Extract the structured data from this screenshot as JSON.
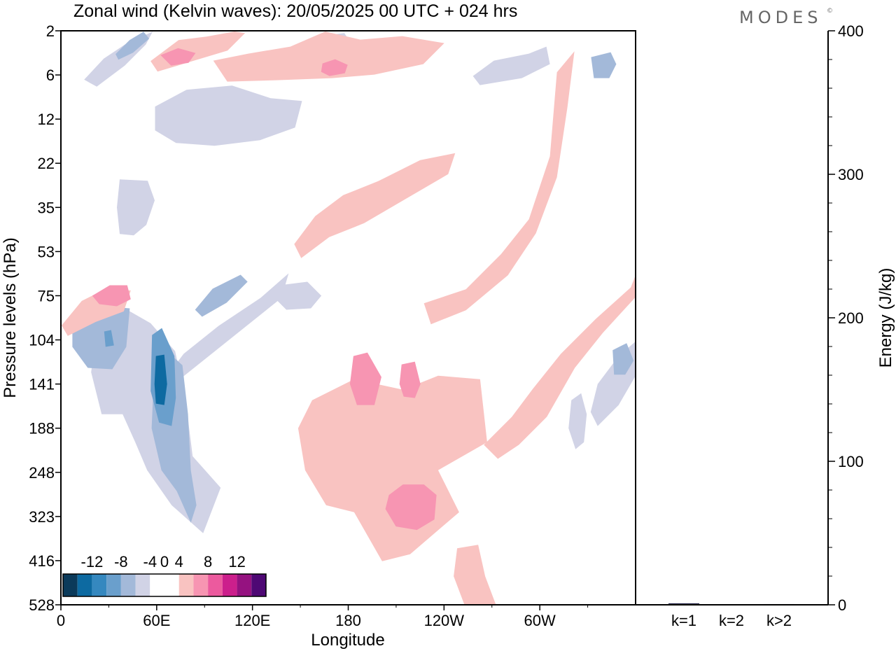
{
  "header": {
    "title": "Zonal wind (Kelvin waves):  20/05/2025  00 UTC  + 024 hrs",
    "brand": "MODES",
    "brand_mark": "©"
  },
  "colors": {
    "neg_light": "#d1d3e6",
    "neg_2": "#a3b9d9",
    "neg_3": "#6a9fcc",
    "neg_4": "#3588bf",
    "neg_5": "#0d6aa1",
    "neg_6": "#0b3a5a",
    "pos_light": "#f9c3c1",
    "pos_2": "#f795b2",
    "pos_3": "#ec5a9e",
    "pos_4": "#cc1f8c",
    "pos_5": "#951280",
    "pos_6": "#4e0874",
    "axis": "#000000"
  },
  "chart_data": [
    {
      "type": "heatmap",
      "title": "Zonal wind (Kelvin waves):  20/05/2025  00 UTC  + 024 hrs",
      "xlabel": "Longitude",
      "ylabel": "Pressure levels (hPa)",
      "x_ticks": [
        "0",
        "60E",
        "120E",
        "180",
        "120W",
        "60W"
      ],
      "y_ticks": [
        "2",
        "6",
        "12",
        "22",
        "35",
        "53",
        "75",
        "104",
        "141",
        "188",
        "248",
        "323",
        "416",
        "528"
      ],
      "colorbar": {
        "labels": [
          "-12",
          "-8",
          "-4",
          "0",
          "4",
          "8",
          "12"
        ],
        "levels": [
          -14,
          -12,
          -10,
          -8,
          -6,
          -4,
          -2,
          2,
          4,
          6,
          8,
          10,
          12,
          14
        ]
      },
      "contours": [
        {
          "sign": "neg",
          "level": -2,
          "lon": 105,
          "p": 12
        },
        {
          "sign": "neg",
          "level": -2,
          "lon": 50,
          "p": 35
        },
        {
          "sign": "neg",
          "level": -2,
          "lon": 65,
          "p": 188
        },
        {
          "sign": "neg",
          "level": -2,
          "lon": 90,
          "p": 104
        },
        {
          "sign": "neg",
          "level": -4,
          "lon": 30,
          "p": 104
        },
        {
          "sign": "neg",
          "level": -6,
          "lon": 35,
          "p": 104
        },
        {
          "sign": "neg",
          "level": -4,
          "lon": 70,
          "p": 188
        },
        {
          "sign": "neg",
          "level": -6,
          "lon": 65,
          "p": 141
        },
        {
          "sign": "neg",
          "level": -10,
          "lon": 63,
          "p": 141
        },
        {
          "sign": "neg",
          "level": -4,
          "lon": 95,
          "p": 75
        },
        {
          "sign": "neg",
          "level": -2,
          "lon": 40,
          "p": 4
        },
        {
          "sign": "neg",
          "level": -4,
          "lon": 43,
          "p": 3
        },
        {
          "sign": "neg",
          "level": -2,
          "lon": 160,
          "p": 3
        },
        {
          "sign": "neg",
          "level": -2,
          "lon": 280,
          "p": 5
        },
        {
          "sign": "neg",
          "level": -4,
          "lon": 340,
          "p": 5
        },
        {
          "sign": "neg",
          "level": -2,
          "lon": 150,
          "p": 75
        },
        {
          "sign": "neg",
          "level": -2,
          "lon": 345,
          "p": 141
        },
        {
          "sign": "neg",
          "level": -4,
          "lon": 350,
          "p": 120
        },
        {
          "sign": "neg",
          "level": -2,
          "lon": 325,
          "p": 188
        },
        {
          "sign": "pos",
          "level": 2,
          "lon": 170,
          "p": 5
        },
        {
          "sign": "pos",
          "level": 4,
          "lon": 170,
          "p": 5
        },
        {
          "sign": "pos",
          "level": 2,
          "lon": 100,
          "p": 3
        },
        {
          "sign": "pos",
          "level": 4,
          "lon": 80,
          "p": 4
        },
        {
          "sign": "pos",
          "level": 2,
          "lon": 280,
          "p": 22
        },
        {
          "sign": "pos",
          "level": 2,
          "lon": 190,
          "p": 38
        },
        {
          "sign": "pos",
          "level": 2,
          "lon": 35,
          "p": 80
        },
        {
          "sign": "pos",
          "level": 4,
          "lon": 35,
          "p": 75
        },
        {
          "sign": "pos",
          "level": 2,
          "lon": 210,
          "p": 188
        },
        {
          "sign": "pos",
          "level": 4,
          "lon": 192,
          "p": 141
        },
        {
          "sign": "pos",
          "level": 4,
          "lon": 220,
          "p": 141
        },
        {
          "sign": "pos",
          "level": 4,
          "lon": 223,
          "p": 290
        },
        {
          "sign": "pos",
          "level": 2,
          "lon": 300,
          "p": 104
        },
        {
          "sign": "pos",
          "level": 2,
          "lon": 257,
          "p": 470
        }
      ]
    },
    {
      "type": "bar",
      "categories": [
        "k=1",
        "k=2",
        "k>2"
      ],
      "values": [
        1,
        0.2,
        0.5
      ],
      "xlabel": "",
      "ylabel": "Energy (J/kg)",
      "ylim": [
        0,
        400
      ],
      "y_ticks": [
        "0",
        "100",
        "200",
        "300",
        "400"
      ]
    }
  ]
}
